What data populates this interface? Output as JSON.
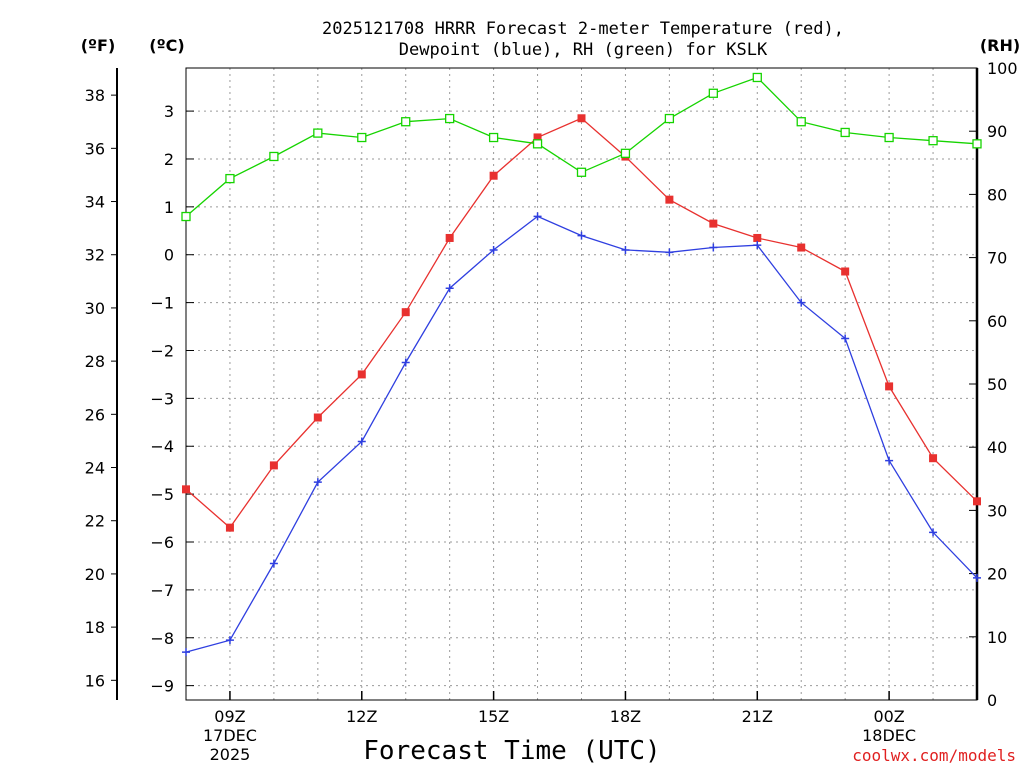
{
  "title": {
    "line1": "2025121708 HRRR Forecast 2-meter Temperature (red),",
    "line2": "Dewpoint (blue), RH (green) for KSLK"
  },
  "units": {
    "fahrenheit": "(ºF)",
    "celsius": "(ºC)",
    "rh": "(RH)"
  },
  "xlabel": "Forecast Time (UTC)",
  "credit": "coolwx.com/models",
  "colors": {
    "temperature": "#e8312f",
    "dewpoint": "#2f3fe0",
    "rh": "#16d400",
    "credit": "#e02020"
  },
  "chart_data": {
    "type": "line",
    "title": "2025121708 HRRR Forecast 2-meter Temperature (red), Dewpoint (blue), RH (green) for KSLK",
    "xlabel": "Forecast Time (UTC)",
    "x_hours": [
      8,
      9,
      10,
      11,
      12,
      13,
      14,
      15,
      16,
      17,
      18,
      19,
      20,
      21,
      22,
      23,
      24,
      25,
      26
    ],
    "x_range_hours": [
      8,
      26
    ],
    "x_ticks": [
      {
        "hour": 9,
        "label": "09Z",
        "sub1": "17DEC",
        "sub2": "2025"
      },
      {
        "hour": 12,
        "label": "12Z",
        "sub1": "",
        "sub2": ""
      },
      {
        "hour": 15,
        "label": "15Z",
        "sub1": "",
        "sub2": ""
      },
      {
        "hour": 18,
        "label": "18Z",
        "sub1": "",
        "sub2": ""
      },
      {
        "hour": 21,
        "label": "21Z",
        "sub1": "",
        "sub2": ""
      },
      {
        "hour": 24,
        "label": "00Z",
        "sub1": "18DEC",
        "sub2": ""
      }
    ],
    "y_celsius": {
      "range": [
        -9.3,
        3.9
      ],
      "ticks": [
        3,
        2,
        1,
        0,
        -1,
        -2,
        -3,
        -4,
        -5,
        -6,
        -7,
        -8,
        -9
      ],
      "tick_labels": [
        "3",
        "2",
        "1",
        "0",
        "−1",
        "−2",
        "−3",
        "−4",
        "−5",
        "−6",
        "−7",
        "−8",
        "−9"
      ]
    },
    "y_fahrenheit": {
      "ticks": [
        38,
        36,
        34,
        32,
        30,
        28,
        26,
        24,
        22,
        20,
        18,
        16
      ],
      "tick_labels": [
        "38",
        "36",
        "34",
        "32",
        "30",
        "28",
        "26",
        "24",
        "22",
        "20",
        "18",
        "16"
      ]
    },
    "y_rh": {
      "range": [
        0,
        100
      ],
      "ticks": [
        100,
        90,
        80,
        70,
        60,
        50,
        40,
        30,
        20,
        10,
        0
      ],
      "tick_labels": [
        "100",
        "90",
        "80",
        "70",
        "60",
        "50",
        "40",
        "30",
        "20",
        "10",
        "0"
      ]
    },
    "series": [
      {
        "name": "Temperature",
        "axis": "celsius",
        "marker": "filled-square",
        "values": [
          -4.9,
          -5.7,
          -4.4,
          -3.4,
          -2.5,
          -1.2,
          0.35,
          1.65,
          2.45,
          2.85,
          2.05,
          1.15,
          0.65,
          0.35,
          0.15,
          -0.35,
          -2.75,
          -4.25,
          -5.15
        ]
      },
      {
        "name": "Dewpoint",
        "axis": "celsius",
        "marker": "plus",
        "values": [
          -8.3,
          -8.05,
          -6.45,
          -4.75,
          -3.9,
          -2.25,
          -0.7,
          0.1,
          0.8,
          0.4,
          0.1,
          0.05,
          0.15,
          0.2,
          -1.0,
          -1.75,
          -4.3,
          -5.8,
          -6.75
        ]
      },
      {
        "name": "RH",
        "axis": "rh",
        "marker": "open-square",
        "values": [
          76.5,
          82.5,
          86.0,
          89.7,
          89.0,
          91.5,
          92.0,
          89.0,
          88.0,
          83.5,
          86.5,
          92.0,
          96.0,
          98.5,
          91.5,
          89.8,
          89.0,
          88.5,
          88.0
        ]
      }
    ]
  }
}
